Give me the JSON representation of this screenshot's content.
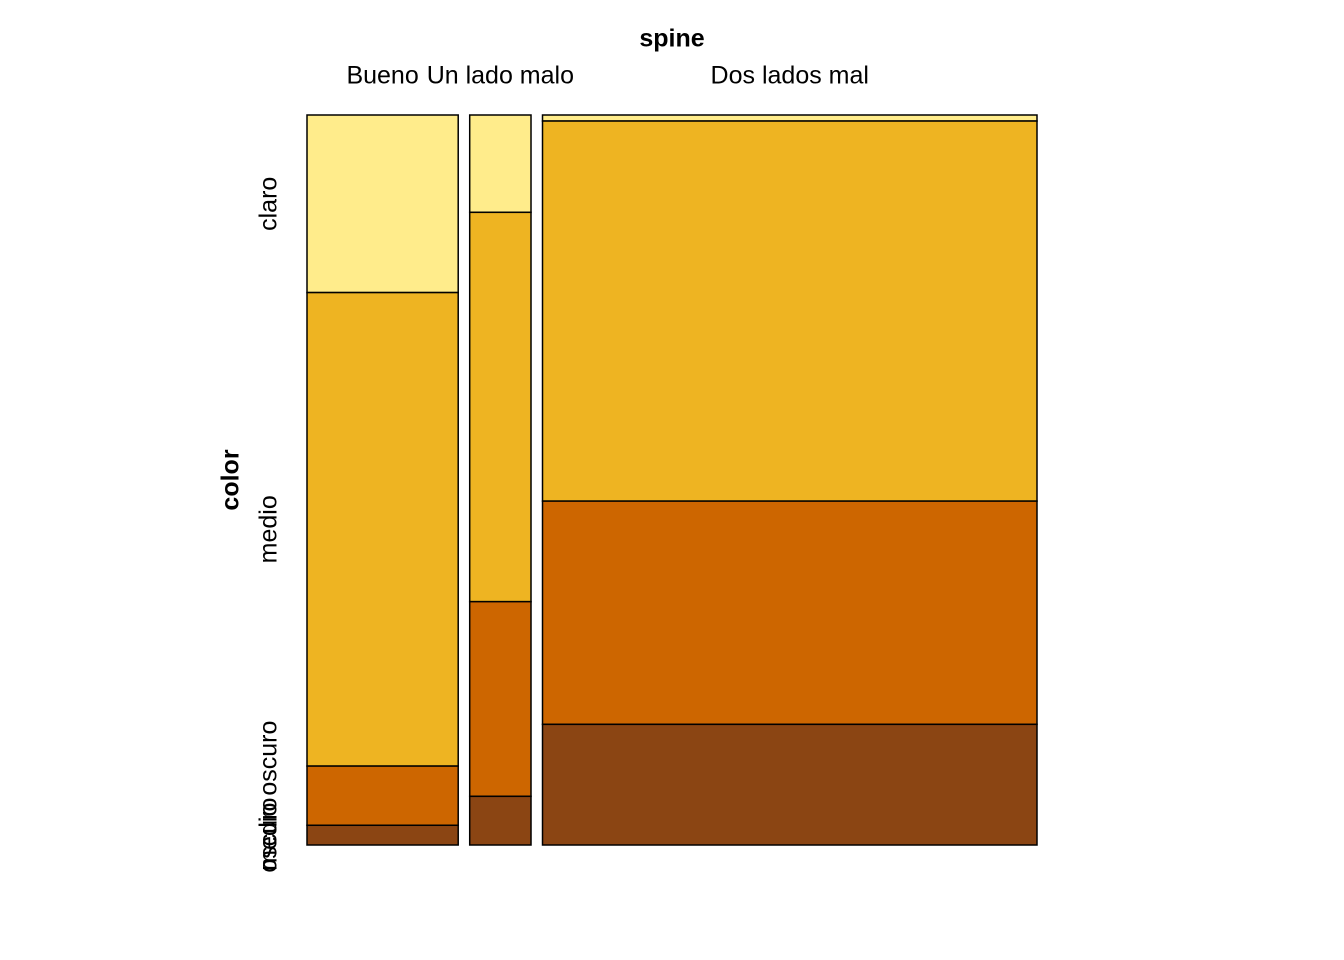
{
  "chart_data": {
    "type": "mosaic",
    "xlabel": "spine",
    "ylabel": "color",
    "categories": [
      "Bueno",
      "Un lado malo",
      "Dos lados mal"
    ],
    "series": [
      {
        "name": "claro",
        "color": "#FFEC8B",
        "values": [
          9,
          2,
          1
        ]
      },
      {
        "name": "medio",
        "color": "#EEB422",
        "values": [
          24,
          8,
          63
        ]
      },
      {
        "name": "medio oscuro",
        "color": "#CD6600",
        "values": [
          3,
          4,
          37
        ]
      },
      {
        "name": "oscuro",
        "color": "#8B4513",
        "values": [
          1,
          1,
          20
        ]
      }
    ]
  }
}
